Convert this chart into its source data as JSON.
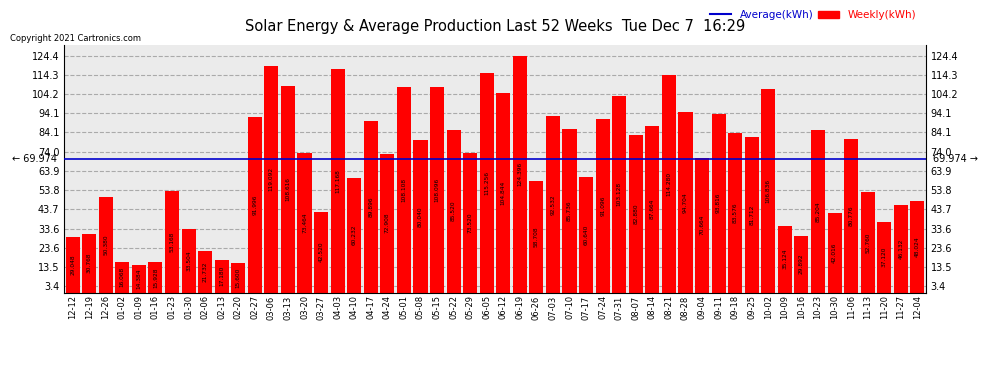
{
  "title": "Solar Energy & Average Production Last 52 Weeks  Tue Dec 7  16:29",
  "copyright": "Copyright 2021 Cartronics.com",
  "legend_avg": "Average(kWh)",
  "legend_weekly": "Weekly(kWh)",
  "average_line": 69.974,
  "bar_color": "#ff0000",
  "avg_line_color": "#0000cc",
  "background_color": "#ebebeb",
  "ylim_min": 0,
  "ylim_max": 130,
  "yticks": [
    3.4,
    13.5,
    23.6,
    33.6,
    43.7,
    53.8,
    63.9,
    74.0,
    84.1,
    94.1,
    104.2,
    114.3,
    124.4
  ],
  "categories": [
    "12-12",
    "12-19",
    "12-26",
    "01-02",
    "01-09",
    "01-16",
    "01-23",
    "01-30",
    "02-06",
    "02-13",
    "02-20",
    "02-27",
    "03-06",
    "03-13",
    "03-20",
    "03-27",
    "04-03",
    "04-10",
    "04-17",
    "04-24",
    "05-01",
    "05-08",
    "05-15",
    "05-22",
    "05-29",
    "06-05",
    "06-12",
    "06-19",
    "06-26",
    "07-03",
    "07-10",
    "07-17",
    "07-24",
    "07-31",
    "08-07",
    "08-14",
    "08-21",
    "08-28",
    "09-04",
    "09-11",
    "09-18",
    "09-25",
    "10-02",
    "10-09",
    "10-16",
    "10-23",
    "10-30",
    "11-06",
    "11-13",
    "11-20",
    "11-27",
    "12-04"
  ],
  "values": [
    29.048,
    30.768,
    50.38,
    16.068,
    14.384,
    15.928,
    53.168,
    33.504,
    21.732,
    17.18,
    15.6,
    91.996,
    119.092,
    108.616,
    73.464,
    42.52,
    117.168,
    60.232,
    89.896,
    72.908,
    108.108,
    80.04,
    108.096,
    85.52,
    73.52,
    115.256,
    104.844,
    124.396,
    58.708,
    92.532,
    85.736,
    60.64,
    91.096,
    103.128,
    82.88,
    87.664,
    114.28,
    94.704,
    70.664,
    93.816,
    83.576,
    81.712,
    106.836,
    35.124,
    29.892,
    85.204,
    42.016,
    80.776,
    52.76,
    37.12,
    46.132,
    48.024
  ]
}
